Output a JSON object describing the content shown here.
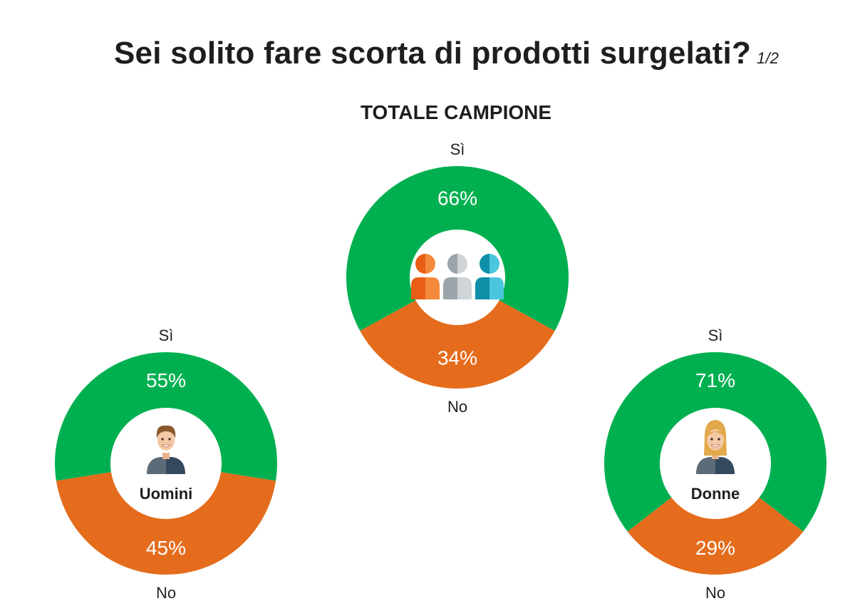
{
  "header": {
    "title": "Sei solito fare scorta di prodotti surgelati?",
    "page_indicator": "1/2",
    "subtitle": "TOTALE CAMPIONE"
  },
  "colors": {
    "yes": "#00b050",
    "no": "#e46c1c"
  },
  "chart_data": [
    {
      "type": "pie",
      "id": "totale",
      "icon": "group-people-icon",
      "center_label": "",
      "categories": [
        "Sì",
        "No"
      ],
      "values": [
        66,
        34
      ],
      "value_labels": [
        "66%",
        "34%"
      ]
    },
    {
      "type": "pie",
      "id": "uomini",
      "icon": "man-avatar-icon",
      "center_label": "Uomini",
      "categories": [
        "Sì",
        "No"
      ],
      "values": [
        55,
        45
      ],
      "value_labels": [
        "55%",
        "45%"
      ]
    },
    {
      "type": "pie",
      "id": "donne",
      "icon": "woman-avatar-icon",
      "center_label": "Donne",
      "categories": [
        "Sì",
        "No"
      ],
      "values": [
        71,
        29
      ],
      "value_labels": [
        "71%",
        "29%"
      ]
    }
  ]
}
